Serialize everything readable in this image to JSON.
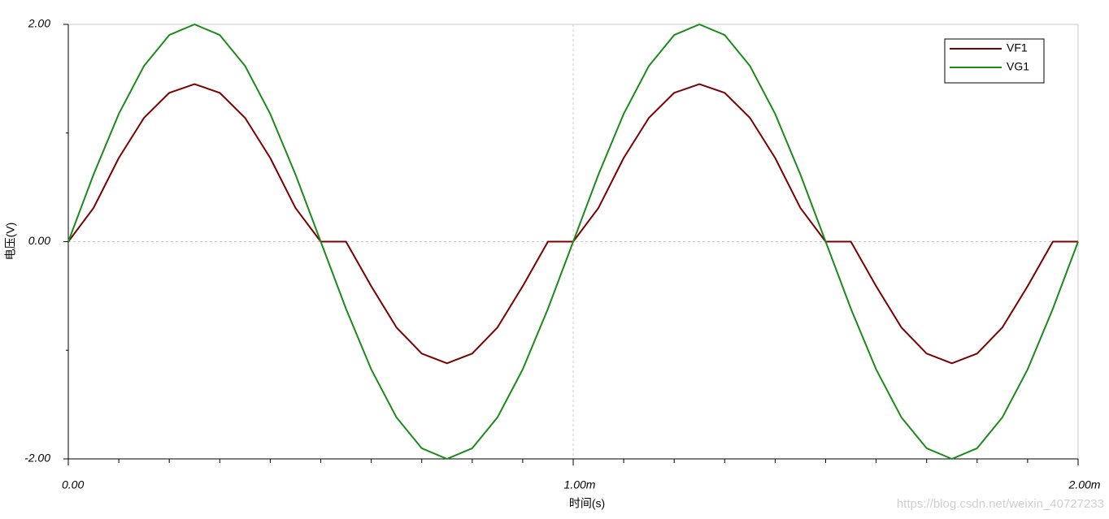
{
  "chart_data": {
    "type": "line",
    "x_label": "时间(s)",
    "y_label": "电压(V)",
    "x": [
      0,
      5e-05,
      0.0001,
      0.00015,
      0.0002,
      0.00025,
      0.0003,
      0.00035,
      0.0004,
      0.00045,
      0.0005,
      0.00055,
      0.0006,
      0.00065,
      0.0007,
      0.00075,
      0.0008,
      0.00085,
      0.0009,
      0.00095,
      0.001,
      0.00105,
      0.0011,
      0.00115,
      0.0012,
      0.00125,
      0.0013,
      0.00135,
      0.0014,
      0.00145,
      0.0015,
      0.00155,
      0.0016,
      0.00165,
      0.0017,
      0.00175,
      0.0018,
      0.00185,
      0.0019,
      0.00195,
      0.002
    ],
    "series": [
      {
        "name": "VF1",
        "color": "#7b0000",
        "values": [
          0,
          0.31,
          0.77,
          1.14,
          1.37,
          1.45,
          1.37,
          1.14,
          0.77,
          0.31,
          0,
          0,
          -0.41,
          -0.79,
          -1.03,
          -1.12,
          -1.03,
          -0.79,
          -0.41,
          0,
          0,
          0.31,
          0.77,
          1.14,
          1.37,
          1.45,
          1.37,
          1.14,
          0.77,
          0.31,
          0,
          0,
          -0.41,
          -0.79,
          -1.03,
          -1.12,
          -1.03,
          -0.79,
          -0.41,
          0,
          0
        ]
      },
      {
        "name": "VG1",
        "color": "#1a8a1a",
        "values": [
          0,
          0.618,
          1.176,
          1.618,
          1.902,
          2,
          1.902,
          1.618,
          1.176,
          0.618,
          0,
          -0.618,
          -1.176,
          -1.618,
          -1.902,
          -2,
          -1.902,
          -1.618,
          -1.176,
          -0.618,
          0,
          0.618,
          1.176,
          1.618,
          1.902,
          2,
          1.902,
          1.618,
          1.176,
          0.618,
          0,
          -0.618,
          -1.176,
          -1.618,
          -1.902,
          -2,
          -1.902,
          -1.618,
          -1.176,
          -0.618,
          0
        ]
      }
    ],
    "xlim": [
      0,
      0.002
    ],
    "ylim": [
      -2,
      2
    ],
    "xticks": [
      {
        "value": 0,
        "label": "0.00"
      },
      {
        "value": 0.001,
        "label": "1.00m"
      },
      {
        "value": 0.002,
        "label": "2.00m"
      }
    ],
    "yticks": [
      {
        "value": -2,
        "label": "-2.00"
      },
      {
        "value": 0,
        "label": "0.00"
      },
      {
        "value": 2,
        "label": "2.00"
      }
    ],
    "x_minor_ticks": [
      0.0001,
      0.0002,
      0.0003,
      0.0004,
      0.0005,
      0.0006,
      0.0007,
      0.0008,
      0.0009,
      0.0011,
      0.0012,
      0.0013,
      0.0014,
      0.0015,
      0.0016,
      0.0017,
      0.0018,
      0.0019
    ],
    "y_minor_ticks": [
      -1,
      1
    ],
    "grid": true,
    "legend": "upper right",
    "watermark": "https://blog.csdn.net/weixin_40727233"
  }
}
